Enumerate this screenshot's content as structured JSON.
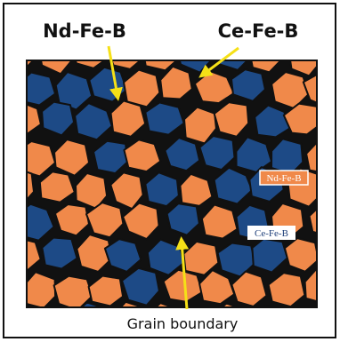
{
  "labels": {
    "top_left": "Nd-Fe-B",
    "top_right": "Ce-Fe-B",
    "inner_nd": "Nd-Fe-B",
    "inner_ce": "Ce-Fe-B",
    "bottom": "Grain boundary"
  }
}
